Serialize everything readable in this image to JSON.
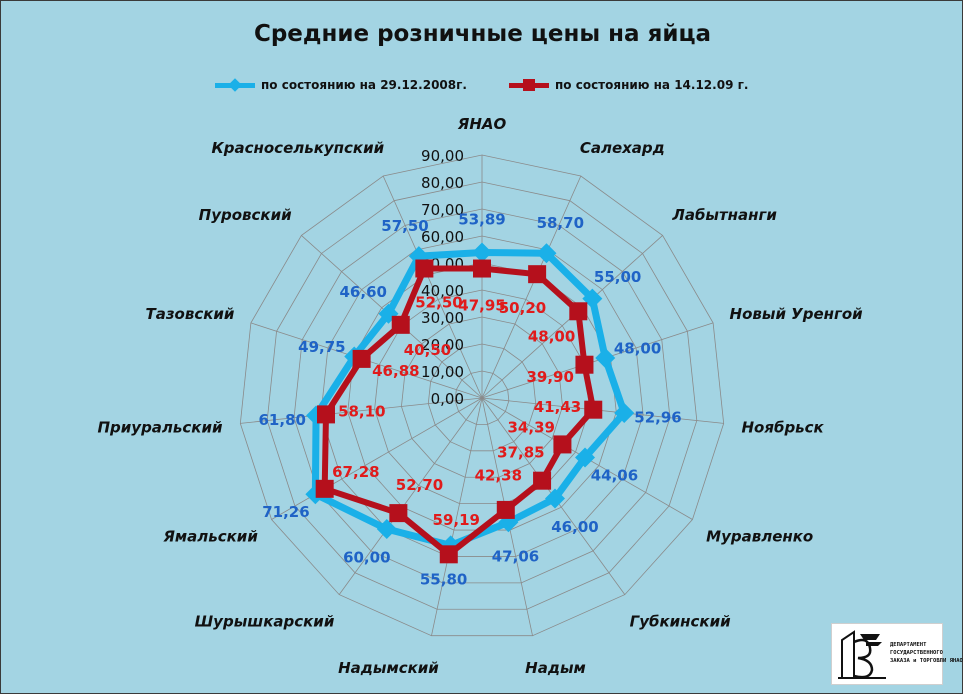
{
  "chart_data": {
    "type": "radar",
    "title": "Средние розничные цены на яйца",
    "categories": [
      "ЯНАО",
      "Салехард",
      "Лабытнанги",
      "Новый Уренгой",
      "Ноябрьск",
      "Муравленко",
      "Губкинский",
      "Надым",
      "Надымский",
      "Шурышкарский",
      "Ямальский",
      "Приуральский",
      "Тазовский",
      "Пуровский",
      "Красноселькупский"
    ],
    "series": [
      {
        "name": "по состоянию на 29.12.2008г.",
        "color": "#1ab0e8",
        "label_color": "#1f63c6",
        "values": [
          53.89,
          58.7,
          55.0,
          48.0,
          52.96,
          44.06,
          46.0,
          47.06,
          55.8,
          60.0,
          71.26,
          61.8,
          49.75,
          46.6,
          57.5
        ],
        "labels": [
          "53,89",
          "58,70",
          "55,00",
          "48,00",
          "52,96",
          "44,06",
          "46,00",
          "47,06",
          "55,80",
          "60,00",
          "71,26",
          "61,80",
          "49,75",
          "46,60",
          "57,50"
        ]
      },
      {
        "name": "по состоянию на 14.12.09 г.",
        "color": "#b5101c",
        "label_color": "#e01b1b",
        "values": [
          47.95,
          50.2,
          48.0,
          39.9,
          41.43,
          34.39,
          37.85,
          42.38,
          59.19,
          52.7,
          67.28,
          58.1,
          46.88,
          40.5,
          52.5
        ],
        "labels": [
          "47,95",
          "50,20",
          "48,00",
          "39,90",
          "41,43",
          "34,39",
          "37,85",
          "42,38",
          "59,19",
          "52,70",
          "67,28",
          "58,10",
          "46,88",
          "40,50",
          "52,50"
        ]
      }
    ],
    "rlim": [
      0,
      90
    ],
    "rticks": [
      "0,00",
      "10,00",
      "20,00",
      "30,00",
      "40,00",
      "50,00",
      "60,00",
      "70,00",
      "80,00",
      "90,00"
    ],
    "grid": true,
    "legend": "top"
  },
  "logo": {
    "lines": [
      "ДЕПАРТАМЕНТ",
      "ГОСУДАРСТВЕННОГО",
      "ЗАКАЗА и ТОРГОВЛИ ЯНАО"
    ]
  }
}
